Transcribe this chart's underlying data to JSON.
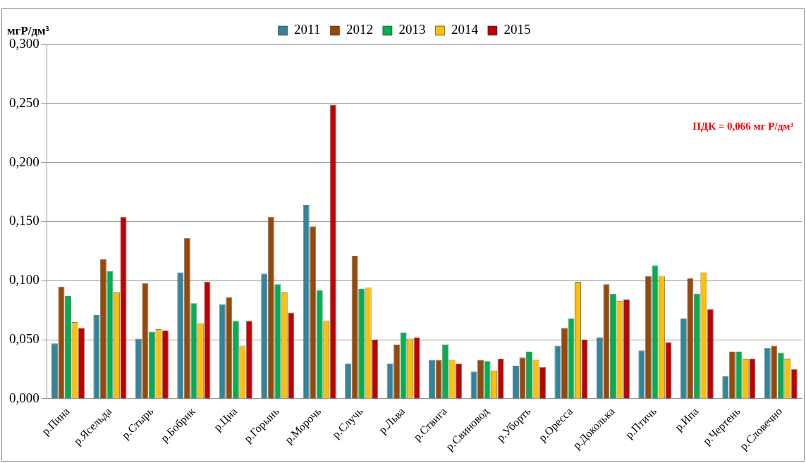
{
  "chart_data": {
    "type": "bar",
    "ylabel": "мгР/дм³",
    "categories": [
      "р.Пина",
      "р.Ясельда",
      "р.Стырь",
      "р.Бобрик",
      "р.Цна",
      "р.Горынь",
      "р.Морочь",
      "р.Случь",
      "р.Льва",
      "р.Ствига",
      "р.Свиновод",
      "р.Уборть",
      "р.Оресса",
      "р.Доколька",
      "р.Птичь",
      "р.Ипа",
      "р.Чертень",
      "р.Словечно"
    ],
    "series": [
      {
        "name": "2011",
        "color": "#31859c",
        "values": [
          0.047,
          0.071,
          0.051,
          0.107,
          0.08,
          0.106,
          0.164,
          0.03,
          0.03,
          0.033,
          0.023,
          0.028,
          0.045,
          0.052,
          0.041,
          0.068,
          0.019,
          0.043
        ]
      },
      {
        "name": "2012",
        "color": "#984807",
        "values": [
          0.095,
          0.118,
          0.098,
          0.136,
          0.086,
          0.154,
          0.146,
          0.121,
          0.046,
          0.033,
          0.033,
          0.035,
          0.06,
          0.097,
          0.104,
          0.102,
          0.04,
          0.045
        ]
      },
      {
        "name": "2013",
        "color": "#00b050",
        "values": [
          0.087,
          0.108,
          0.057,
          0.081,
          0.066,
          0.097,
          0.092,
          0.093,
          0.056,
          0.046,
          0.032,
          0.04,
          0.068,
          0.089,
          0.113,
          0.089,
          0.04,
          0.039
        ]
      },
      {
        "name": "2014",
        "color": "#ffc000",
        "values": [
          0.065,
          0.09,
          0.059,
          0.064,
          0.045,
          0.09,
          0.066,
          0.094,
          0.051,
          0.033,
          0.024,
          0.033,
          0.099,
          0.083,
          0.104,
          0.107,
          0.034,
          0.034
        ]
      },
      {
        "name": "2015",
        "color": "#c00000",
        "values": [
          0.06,
          0.154,
          0.058,
          0.099,
          0.066,
          0.073,
          0.249,
          0.05,
          0.052,
          0.03,
          0.034,
          0.027,
          0.05,
          0.084,
          0.048,
          0.076,
          0.034,
          0.025
        ]
      }
    ],
    "ylim": [
      0,
      0.3
    ],
    "yticks": [
      {
        "value": 0,
        "label": "0,000"
      },
      {
        "value": 0.05,
        "label": "0,050"
      },
      {
        "value": 0.1,
        "label": "0,100"
      },
      {
        "value": 0.15,
        "label": "0,150"
      },
      {
        "value": 0.2,
        "label": "0,200"
      },
      {
        "value": 0.25,
        "label": "0,250"
      },
      {
        "value": 0.3,
        "label": "0,300"
      }
    ],
    "grid": "y",
    "legend": "top",
    "annotations": [
      "ПДК = 0,066 мг Р/дм³"
    ]
  }
}
